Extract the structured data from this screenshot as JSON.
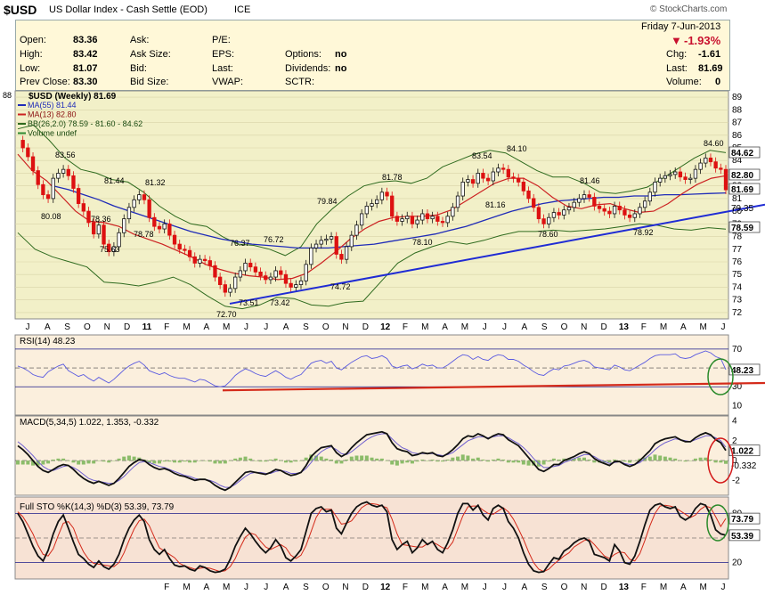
{
  "header": {
    "symbol": "$USD",
    "name": "US Dollar Index - Cash Settle (EOD)",
    "exchange": "ICE",
    "copyright": "© StockCharts.com"
  },
  "quote": {
    "date": "Friday  7-Jun-2013",
    "pct_change": "-1.93%",
    "labels": {
      "open": "Open:",
      "high": "High:",
      "low": "Low:",
      "prev_close": "Prev Close:",
      "ask": "Ask:",
      "ask_size": "Ask Size:",
      "bid": "Bid:",
      "bid_size": "Bid Size:",
      "pe": "P/E:",
      "eps": "EPS:",
      "last": "Last:",
      "vwap": "VWAP:",
      "options": "Options:",
      "dividends": "Dividends:",
      "sctr": "SCTR:",
      "chg": "Chg:",
      "last_r": "Last:",
      "volume": "Volume:"
    },
    "open": "83.36",
    "high": "83.42",
    "low": "81.07",
    "prev_close": "83.30",
    "options": "no",
    "dividends": "no",
    "chg": "-1.61",
    "last": "81.69",
    "volume": "0"
  },
  "colors": {
    "price_bg": "#f2f0c8",
    "panel_bg": "#fbefdd",
    "sto_bg": "#f7e2d4",
    "up": "#111111",
    "down": "#dd1111",
    "ma55": "#1f2bb8",
    "ma13": "#cc2222",
    "bb": "#2f6b1f",
    "trend": "#1f2bd4",
    "rsi": "#5a5ae0",
    "macd": "#111111",
    "signal": "#7060d0",
    "hist": "#8cbc6a",
    "circle_green": "#2a8a2a",
    "circle_red": "#d41a1a"
  },
  "chart_data": [
    {
      "type": "candlestick",
      "title": "$USD (Weekly) 81.69",
      "legend": [
        "MA(55) 81.44",
        "MA(13) 82.80",
        "BB(26,2.0) 78.59 - 81.60 - 84.62",
        "Volume undef"
      ],
      "legend_placement": "top-left",
      "y_axis_ticks": [
        72,
        73,
        74,
        75,
        76,
        77,
        78,
        79,
        80,
        81,
        82,
        83,
        84,
        85,
        86,
        87,
        88,
        89
      ],
      "ylim": [
        71.5,
        89.5
      ],
      "y_label_left": "88",
      "x_tick_labels": [
        "J",
        "A",
        "S",
        "O",
        "N",
        "D",
        "11",
        "F",
        "M",
        "A",
        "M",
        "J",
        "J",
        "A",
        "S",
        "O",
        "N",
        "D",
        "12",
        "F",
        "M",
        "A",
        "M",
        "J",
        "J",
        "A",
        "S",
        "O",
        "N",
        "D",
        "13",
        "F",
        "M",
        "A",
        "M",
        "J"
      ],
      "annotations": [
        "83.56",
        "80.08",
        "78.36",
        "75.63",
        "81.44",
        "81.32",
        "78.78",
        "76.37",
        "76.72",
        "72.70",
        "73.51",
        "73.42",
        "74.72",
        "79.84",
        "81.78",
        "78.10",
        "83.54",
        "84.10",
        "81.16",
        "78.60",
        "81.46",
        "78.92",
        "84.60"
      ],
      "right_labels": [
        "84.62",
        "82.80",
        "81.69",
        "79.35",
        "78.59"
      ],
      "close": [
        85.6,
        85.0,
        84.3,
        83.2,
        82.1,
        81.3,
        81.0,
        82.6,
        83.0,
        83.3,
        82.8,
        81.8,
        80.6,
        80.0,
        79.1,
        78.2,
        78.9,
        77.4,
        76.8,
        77.2,
        78.3,
        79.4,
        80.3,
        80.9,
        81.3,
        80.9,
        79.5,
        78.8,
        78.6,
        79.0,
        78.1,
        77.4,
        77.0,
        76.9,
        76.4,
        75.9,
        76.2,
        76.1,
        75.7,
        74.8,
        74.2,
        73.6,
        73.9,
        74.8,
        75.3,
        75.9,
        75.6,
        75.2,
        74.9,
        74.6,
        74.8,
        75.3,
        75.0,
        74.3,
        74.0,
        74.2,
        74.5,
        75.8,
        77.1,
        77.4,
        77.7,
        77.8,
        78.0,
        76.6,
        76.2,
        77.2,
        78.1,
        78.9,
        79.8,
        80.4,
        80.6,
        80.9,
        81.5,
        81.2,
        79.6,
        79.2,
        79.4,
        79.6,
        79.0,
        79.3,
        79.8,
        79.4,
        79.6,
        79.2,
        79.1,
        79.6,
        80.3,
        81.2,
        82.3,
        82.5,
        82.2,
        83.0,
        82.6,
        82.4,
        83.1,
        83.4,
        83.3,
        82.7,
        82.6,
        82.3,
        81.6,
        81.0,
        80.3,
        79.4,
        79.0,
        79.5,
        79.9,
        79.7,
        80.1,
        80.3,
        80.7,
        81.0,
        81.3,
        81.1,
        80.4,
        80.2,
        80.0,
        79.8,
        80.4,
        80.1,
        79.7,
        79.5,
        79.8,
        80.3,
        80.8,
        81.5,
        82.3,
        82.6,
        82.8,
        82.9,
        83.1,
        82.7,
        82.5,
        82.6,
        83.3,
        83.8,
        84.2,
        83.9,
        83.4,
        83.3,
        81.69
      ],
      "ma55": [
        82.0,
        81.7,
        81.3,
        80.9,
        80.4,
        80.0,
        79.6,
        79.2,
        78.8,
        78.4,
        78.1,
        77.8,
        77.6,
        77.4,
        77.3,
        77.2,
        77.1,
        77.1,
        77.1,
        77.2,
        77.3,
        77.4,
        77.6,
        77.8,
        78.0,
        78.2,
        78.5,
        78.8,
        79.2,
        79.6,
        80.0,
        80.3,
        80.6,
        80.8,
        80.9,
        81.0,
        81.1,
        81.1,
        81.2,
        81.2,
        81.3,
        81.3,
        81.35,
        81.4,
        81.44
      ],
      "ma13": [
        84.5,
        83.2,
        82.4,
        81.2,
        80.0,
        79.2,
        79.1,
        78.8,
        78.2,
        77.8,
        77.4,
        76.9,
        76.4,
        75.8,
        75.4,
        75.1,
        74.9,
        74.8,
        74.6,
        74.7,
        75.1,
        75.9,
        76.8,
        77.8,
        78.6,
        79.2,
        79.5,
        79.6,
        79.6,
        79.7,
        80.1,
        80.8,
        81.5,
        82.2,
        82.6,
        82.6,
        82.0,
        81.1,
        80.4,
        80.2,
        80.5,
        80.6,
        80.2,
        79.9,
        80.0,
        80.6,
        81.4,
        82.1,
        82.6,
        82.8
      ],
      "bb_upper": [
        86.5,
        86.8,
        85.6,
        84.2,
        83.3,
        83.0,
        82.5,
        82.3,
        81.5,
        80.4,
        79.6,
        79.0,
        78.8,
        78.0,
        77.4,
        77.3,
        77.0,
        76.5,
        77.2,
        79.0,
        80.2,
        81.2,
        82.0,
        82.3,
        82.4,
        82.2,
        82.6,
        83.5,
        84.0,
        84.5,
        84.8,
        84.6,
        83.9,
        83.2,
        82.7,
        82.7,
        82.2,
        81.5,
        81.4,
        81.6,
        81.9,
        82.6,
        83.4,
        84.2,
        84.8,
        84.62
      ],
      "bb_lower": [
        78.3,
        77.0,
        76.4,
        76.0,
        75.6,
        74.4,
        74.3,
        74.1,
        74.4,
        74.8,
        74.2,
        73.3,
        72.5,
        72.3,
        72.6,
        73.2,
        73.1,
        72.6,
        72.5,
        72.8,
        72.9,
        74.4,
        75.9,
        76.7,
        77.2,
        77.6,
        77.4,
        77.7,
        78.1,
        78.4,
        78.4,
        78.5,
        78.4,
        78.5,
        78.6,
        78.8,
        79.0,
        78.9,
        78.6,
        78.5,
        78.7,
        78.59
      ],
      "trendline": [
        [
          72.7,
          80.52
        ]
      ]
    },
    {
      "type": "line",
      "title": "RSI(14) 48.23",
      "y_axis_ticks": [
        10,
        30,
        50,
        70
      ],
      "ylim": [
        0,
        85
      ],
      "right_labels": [
        "48.23",
        "30",
        "10"
      ],
      "rsi": [
        52,
        50,
        47,
        43,
        41,
        40,
        46,
        49,
        52,
        54,
        47,
        44,
        41,
        43,
        39,
        36,
        40,
        37,
        34,
        38,
        43,
        48,
        52,
        55,
        57,
        53,
        47,
        45,
        43,
        45,
        42,
        40,
        39,
        39,
        37,
        35,
        38,
        37,
        34,
        31,
        30,
        31,
        36,
        42,
        46,
        49,
        47,
        44,
        42,
        41,
        44,
        47,
        44,
        40,
        38,
        41,
        43,
        49,
        55,
        57,
        58,
        55,
        57,
        50,
        48,
        52,
        56,
        59,
        62,
        63,
        60,
        61,
        63,
        60,
        52,
        50,
        52,
        53,
        49,
        51,
        54,
        52,
        53,
        50,
        50,
        53,
        57,
        61,
        64,
        63,
        59,
        62,
        59,
        58,
        62,
        64,
        63,
        59,
        59,
        57,
        53,
        50,
        46,
        43,
        42,
        46,
        49,
        48,
        52,
        53,
        55,
        57,
        58,
        56,
        51,
        50,
        49,
        48,
        53,
        51,
        48,
        47,
        50,
        53,
        56,
        60,
        63,
        64,
        64,
        64,
        65,
        61,
        60,
        61,
        64,
        66,
        68,
        66,
        62,
        60,
        48.23
      ]
    },
    {
      "type": "line",
      "title": "MACD(5,34,5) 1.022, 1.353, -0.332",
      "series_names": [
        "MACD 1.022",
        "Signal 1.353",
        "Histogram -0.332"
      ],
      "y_axis_ticks": [
        -2,
        0,
        2,
        4
      ],
      "ylim": [
        -3.5,
        4.5
      ],
      "right_labels": [
        "1.022",
        "-0.332"
      ],
      "macd": [
        1.5,
        1.1,
        0.6,
        0.0,
        -0.6,
        -1.0,
        -1.2,
        -0.9,
        -0.6,
        -0.4,
        -0.5,
        -0.9,
        -1.4,
        -1.8,
        -2.1,
        -2.3,
        -2.1,
        -2.3,
        -2.5,
        -2.3,
        -1.8,
        -1.2,
        -0.6,
        -0.2,
        0.1,
        0.0,
        -0.4,
        -0.7,
        -0.9,
        -0.8,
        -1.0,
        -1.3,
        -1.5,
        -1.6,
        -1.8,
        -2.0,
        -1.9,
        -1.9,
        -2.1,
        -2.5,
        -2.8,
        -3.0,
        -2.7,
        -2.2,
        -1.7,
        -1.2,
        -1.1,
        -1.2,
        -1.3,
        -1.4,
        -1.2,
        -0.9,
        -1.0,
        -1.3,
        -1.5,
        -1.4,
        -1.2,
        -0.5,
        0.4,
        0.9,
        1.3,
        1.4,
        1.5,
        0.8,
        0.4,
        0.7,
        1.3,
        1.8,
        2.2,
        2.6,
        2.7,
        2.8,
        2.9,
        2.7,
        1.8,
        1.2,
        1.0,
        0.9,
        0.5,
        0.6,
        0.8,
        0.7,
        0.8,
        0.5,
        0.4,
        0.7,
        1.1,
        1.6,
        2.2,
        2.5,
        2.4,
        2.7,
        2.5,
        2.2,
        2.5,
        2.7,
        2.6,
        2.1,
        1.8,
        1.5,
        0.9,
        0.3,
        -0.3,
        -0.9,
        -1.1,
        -0.8,
        -0.4,
        -0.4,
        0.0,
        0.2,
        0.4,
        0.7,
        0.9,
        0.7,
        0.2,
        -0.1,
        -0.3,
        -0.5,
        -0.1,
        -0.1,
        -0.4,
        -0.6,
        -0.4,
        0.0,
        0.5,
        1.0,
        1.7,
        2.0,
        2.2,
        2.3,
        2.4,
        2.1,
        1.9,
        1.9,
        2.3,
        2.6,
        2.8,
        2.6,
        2.1,
        1.8,
        1.022
      ],
      "signal": [
        1.9,
        1.5,
        1.0,
        0.5,
        -0.1,
        -0.6,
        -0.9,
        -1.0,
        -0.8,
        -0.6,
        -0.5,
        -0.7,
        -1.0,
        -1.4,
        -1.8,
        -2.0,
        -2.1,
        -2.2,
        -2.3,
        -2.3,
        -2.0,
        -1.6,
        -1.1,
        -0.6,
        -0.2,
        -0.1,
        -0.2,
        -0.4,
        -0.6,
        -0.7,
        -0.9,
        -1.1,
        -1.3,
        -1.5,
        -1.6,
        -1.8,
        -1.9,
        -1.9,
        -2.0,
        -2.2,
        -2.5,
        -2.7,
        -2.7,
        -2.4,
        -2.0,
        -1.6,
        -1.3,
        -1.2,
        -1.2,
        -1.3,
        -1.3,
        -1.1,
        -1.0,
        -1.1,
        -1.3,
        -1.3,
        -1.2,
        -0.8,
        -0.2,
        0.4,
        0.9,
        1.2,
        1.4,
        1.1,
        0.7,
        0.6,
        0.9,
        1.3,
        1.7,
        2.1,
        2.4,
        2.6,
        2.7,
        2.7,
        2.2,
        1.7,
        1.3,
        1.1,
        0.8,
        0.7,
        0.7,
        0.7,
        0.7,
        0.6,
        0.5,
        0.6,
        0.8,
        1.2,
        1.6,
        2.0,
        2.2,
        2.4,
        2.4,
        2.3,
        2.4,
        2.5,
        2.5,
        2.3,
        2.0,
        1.7,
        1.3,
        0.8,
        0.2,
        -0.3,
        -0.7,
        -0.7,
        -0.6,
        -0.5,
        -0.2,
        0.0,
        0.2,
        0.4,
        0.6,
        0.6,
        0.4,
        0.1,
        -0.1,
        -0.3,
        -0.2,
        -0.1,
        -0.3,
        -0.4,
        -0.4,
        -0.2,
        0.2,
        0.6,
        1.1,
        1.5,
        1.8,
        2.0,
        2.2,
        2.1,
        2.0,
        1.9,
        2.1,
        2.3,
        2.5,
        2.5,
        2.3,
        2.0,
        1.353
      ]
    },
    {
      "type": "line",
      "title": "Full STO %K(14,3) %D(3) 53.39, 73.79",
      "series_names": [
        "%K 53.39",
        "%D 73.79"
      ],
      "y_axis_ticks": [
        20,
        50,
        80
      ],
      "ylim": [
        0,
        100
      ],
      "right_labels": [
        "73.79",
        "53.39"
      ],
      "k": [
        80,
        70,
        55,
        40,
        28,
        22,
        35,
        55,
        70,
        78,
        62,
        45,
        30,
        25,
        18,
        14,
        22,
        15,
        12,
        18,
        30,
        48,
        62,
        72,
        78,
        70,
        48,
        36,
        30,
        36,
        25,
        17,
        15,
        16,
        12,
        10,
        16,
        14,
        10,
        8,
        9,
        12,
        24,
        40,
        52,
        62,
        55,
        46,
        38,
        32,
        38,
        48,
        40,
        26,
        22,
        28,
        36,
        58,
        80,
        86,
        88,
        82,
        84,
        62,
        55,
        68,
        80,
        88,
        92,
        94,
        90,
        88,
        90,
        82,
        48,
        36,
        42,
        46,
        32,
        38,
        48,
        42,
        46,
        36,
        32,
        44,
        60,
        80,
        92,
        92,
        84,
        90,
        78,
        72,
        86,
        90,
        86,
        70,
        62,
        50,
        32,
        18,
        10,
        8,
        9,
        18,
        26,
        24,
        34,
        38,
        44,
        48,
        50,
        46,
        30,
        28,
        26,
        22,
        42,
        34,
        20,
        18,
        28,
        46,
        66,
        84,
        90,
        92,
        88,
        86,
        88,
        76,
        72,
        76,
        86,
        92,
        90,
        78,
        60,
        55,
        53.39
      ],
      "d": [
        82,
        76,
        66,
        55,
        41,
        30,
        28,
        37,
        53,
        68,
        70,
        62,
        46,
        33,
        24,
        19,
        18,
        17,
        16,
        15,
        20,
        32,
        47,
        61,
        71,
        73,
        65,
        51,
        38,
        34,
        30,
        26,
        19,
        16,
        14,
        12,
        13,
        14,
        13,
        11,
        9,
        10,
        15,
        25,
        39,
        51,
        56,
        54,
        46,
        39,
        36,
        39,
        42,
        38,
        29,
        25,
        29,
        41,
        58,
        75,
        85,
        85,
        85,
        76,
        67,
        68,
        71,
        79,
        87,
        91,
        92,
        91,
        89,
        87,
        73,
        55,
        42,
        41,
        40,
        39,
        39,
        43,
        45,
        42,
        38,
        37,
        45,
        61,
        77,
        88,
        89,
        89,
        84,
        80,
        79,
        83,
        87,
        82,
        73,
        61,
        48,
        33,
        20,
        12,
        9,
        12,
        18,
        23,
        28,
        32,
        39,
        43,
        47,
        48,
        42,
        35,
        28,
        25,
        30,
        33,
        32,
        24,
        22,
        31,
        47,
        65,
        80,
        89,
        90,
        89,
        87,
        83,
        79,
        75,
        78,
        85,
        89,
        87,
        76,
        64,
        73.79
      ]
    }
  ]
}
